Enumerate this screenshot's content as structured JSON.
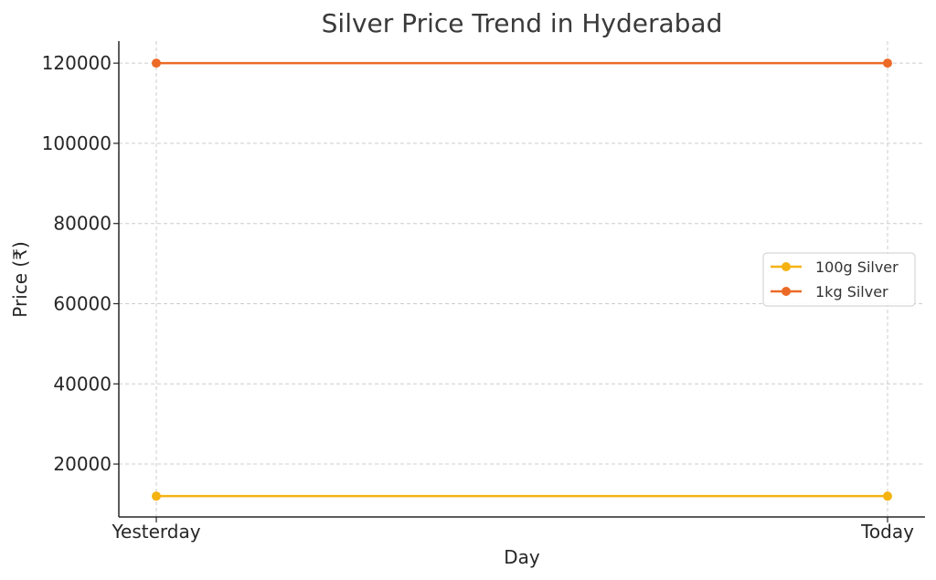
{
  "chart_data": {
    "type": "line",
    "title": "Silver Price Trend in Hyderabad",
    "xlabel": "Day",
    "ylabel": "Price (₹)",
    "categories": [
      "Yesterday",
      "Today"
    ],
    "ylim": [
      6800,
      125500
    ],
    "yticks": [
      20000,
      40000,
      60000,
      80000,
      100000,
      120000
    ],
    "grid": true,
    "legend_position": "center-right",
    "series": [
      {
        "name": "100g Silver",
        "color": "#f5b311",
        "values": [
          12000,
          12000
        ]
      },
      {
        "name": "1kg Silver",
        "color": "#ec6a26",
        "values": [
          120000,
          120000
        ]
      }
    ]
  }
}
